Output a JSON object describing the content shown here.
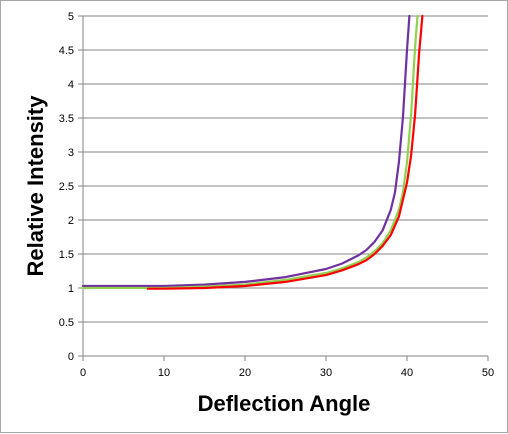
{
  "chart_data": {
    "type": "line",
    "title": "",
    "xlabel": "Deflection Angle",
    "ylabel": "Relative Intensity",
    "xlim": [
      0,
      50
    ],
    "ylim": [
      0,
      5
    ],
    "grid": "horizontal",
    "legend": "none",
    "x_ticks": [
      "0",
      "10",
      "20",
      "30",
      "40",
      "50"
    ],
    "y_ticks": [
      "0",
      "0.5",
      "1",
      "1.5",
      "2",
      "2.5",
      "3",
      "3.5",
      "4",
      "4.5",
      "5"
    ],
    "series": [
      {
        "color": "#7030a0",
        "x": [
          0,
          10,
          15,
          20,
          25,
          30,
          32,
          34,
          35,
          36,
          37,
          38,
          38.5,
          39,
          39.5,
          40,
          40.3
        ],
        "values": [
          1.03,
          1.03,
          1.05,
          1.09,
          1.16,
          1.28,
          1.36,
          1.48,
          1.56,
          1.68,
          1.85,
          2.15,
          2.4,
          2.85,
          3.5,
          4.5,
          5.0
        ]
      },
      {
        "color": "#92d050",
        "x": [
          0,
          10,
          15,
          20,
          25,
          30,
          32,
          34,
          35,
          36,
          37,
          38,
          39,
          39.5,
          40,
          40.5,
          41,
          41.3
        ],
        "values": [
          1.0,
          1.0,
          1.02,
          1.05,
          1.12,
          1.22,
          1.29,
          1.38,
          1.45,
          1.54,
          1.66,
          1.85,
          2.15,
          2.4,
          2.85,
          3.55,
          4.55,
          5.0
        ]
      },
      {
        "color": "#ff0000",
        "x": [
          8,
          10,
          15,
          20,
          25,
          30,
          32,
          34,
          35,
          36,
          37,
          38,
          39,
          40,
          40.5,
          41,
          41.5,
          41.9
        ],
        "values": [
          0.99,
          0.99,
          1.0,
          1.03,
          1.09,
          1.19,
          1.26,
          1.35,
          1.41,
          1.5,
          1.62,
          1.78,
          2.05,
          2.55,
          2.95,
          3.55,
          4.45,
          5.0
        ]
      }
    ]
  }
}
